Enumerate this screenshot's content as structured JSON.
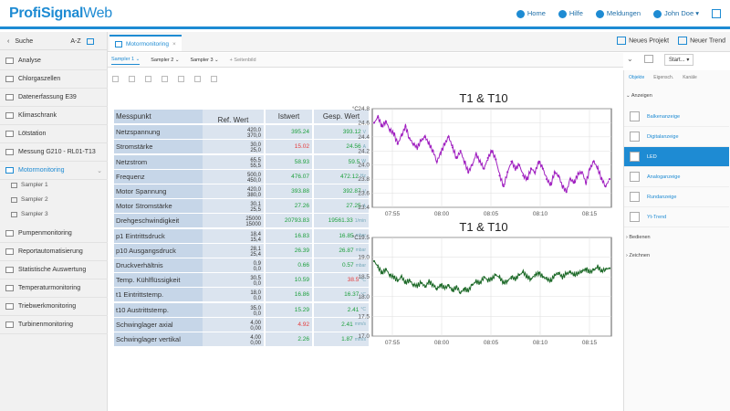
{
  "header": {
    "logo_a": "ProfiSignal",
    "logo_b": "Web",
    "nav": [
      "Home",
      "Hilfe",
      "Meldungen",
      "John Doe"
    ]
  },
  "sidebar": {
    "search": "Suche",
    "sort": "A-Z",
    "items": [
      "Analyse",
      "Chlorgaszellen",
      "Datenerfassung E39",
      "Klimaschrank",
      "Lötstation",
      "Messung G210 - RL01-T13",
      "Motormonitoring",
      "Pumpenmonitoring",
      "Reportautomatisierung",
      "Statistische Auswertung",
      "Temperaturmonitoring",
      "Triebwerkmonitoring",
      "Turbinenmonitoring"
    ],
    "subitems": [
      "Sampler 1",
      "Sampler 2",
      "Sampler 3"
    ]
  },
  "tab": {
    "label": "Motormonitoring",
    "close": "×"
  },
  "toolbar": {
    "new_project": "Neues Projekt",
    "new_trend": "Neuer Trend",
    "start": "Start..."
  },
  "samplers": [
    "Sampler 1",
    "Sampler 2",
    "Sampler 3",
    "+ Seitenbild"
  ],
  "rpanel": {
    "tabs": [
      "Objekte",
      "Eigensch.",
      "Kanäle"
    ],
    "section1": "Anzeigen",
    "items": [
      "Balkenanzeige",
      "Digitalanzeige",
      "LED",
      "Analoganzeige",
      "Rundanzeige",
      "Yt-Trend"
    ],
    "section2": "Bedienen",
    "section3": "Zeichnen"
  },
  "table": {
    "headers": [
      "Messpunkt",
      "Ref. Wert",
      "Istwert",
      "Gesp. Wert"
    ],
    "rows": [
      {
        "name": "Netzspannung",
        "ref": [
          "420,0",
          "370,0"
        ],
        "ist": "395.24",
        "ic": "green",
        "gesp": "393.12",
        "u": "V",
        "gc": "green"
      },
      {
        "name": "Stromstärke",
        "ref": [
          "30,0",
          "25,0"
        ],
        "ist": "15.02",
        "ic": "red",
        "gesp": "24.56",
        "u": "A",
        "gc": "green"
      },
      {
        "name": "Netzstrom",
        "ref": [
          "65,5",
          "55,5"
        ],
        "ist": "58.93",
        "ic": "green",
        "gesp": "59.5",
        "u": "W",
        "gc": "green"
      },
      {
        "name": "Frequenz",
        "ref": [
          "500,0",
          "450,0"
        ],
        "ist": "476.07",
        "ic": "green",
        "gesp": "472.12",
        "u": "Hz",
        "gc": "green"
      },
      {
        "name": "Motor Spannung",
        "ref": [
          "420,0",
          "380,0"
        ],
        "ist": "393.88",
        "ic": "green",
        "gesp": "392.87",
        "u": "V",
        "gc": "green"
      },
      {
        "name": "Motor Stromstärke",
        "ref": [
          "30,1",
          "25,5"
        ],
        "ist": "27.26",
        "ic": "green",
        "gesp": "27.25",
        "u": "A",
        "gc": "green"
      },
      {
        "name": "Drehgeschwindigkeit",
        "ref": [
          "25000",
          "15000"
        ],
        "ist": "20793.83",
        "ic": "green",
        "gesp": "19561.33",
        "u": "1/min",
        "gc": "green"
      },
      {
        "name": "p1 Eintrittsdruck",
        "ref": [
          "18,4",
          "15,4"
        ],
        "ist": "16.83",
        "ic": "green",
        "gesp": "16.85",
        "u": "mbar",
        "gc": "green"
      },
      {
        "name": "p10 Ausgangsdruck",
        "ref": [
          "28,1",
          "25,4"
        ],
        "ist": "26.39",
        "ic": "green",
        "gesp": "26.87",
        "u": "mbar",
        "gc": "green"
      },
      {
        "name": "Druckverhältnis",
        "ref": [
          "0,9",
          "0,0"
        ],
        "ist": "0.66",
        "ic": "green",
        "gesp": "0.57",
        "u": "mbar",
        "gc": "green"
      },
      {
        "name": "Temp. Kühlflüssigkeit",
        "ref": [
          "30,5",
          "0,0"
        ],
        "ist": "10.59",
        "ic": "green",
        "gesp": "38.5",
        "u": "°C",
        "gc": "red"
      },
      {
        "name": "t1 Eintrittstemp.",
        "ref": [
          "18,0",
          "0,0"
        ],
        "ist": "16.86",
        "ic": "green",
        "gesp": "16.37",
        "u": "°C",
        "gc": "green"
      },
      {
        "name": "t10 Austrittstemp.",
        "ref": [
          "35,0",
          "0,0"
        ],
        "ist": "15.29",
        "ic": "green",
        "gesp": "2.41",
        "u": "°C",
        "gc": "green"
      },
      {
        "name": "Schwinglager axial",
        "ref": [
          "4,00",
          "0,00"
        ],
        "ist": "4.92",
        "ic": "red",
        "gesp": "2.41",
        "u": "mm/s",
        "gc": "green"
      },
      {
        "name": "Schwinglager vertikal",
        "ref": [
          "4,00",
          "0,00"
        ],
        "ist": "2.26",
        "ic": "green",
        "gesp": "1.87",
        "u": "mm/s",
        "gc": "green"
      }
    ]
  },
  "chart_data": [
    {
      "type": "line",
      "title": "T1 & T10",
      "ylabel": "°C",
      "ylim": [
        23.4,
        24.8
      ],
      "yticks": [
        "24.8",
        "24.6",
        "24.4",
        "24.2",
        "24.0",
        "23.8",
        "23.6",
        "23.4"
      ],
      "xticks": [
        "07:55",
        "08:00",
        "08:05",
        "08:10",
        "08:15"
      ],
      "color": "#a020c0",
      "series": [
        {
          "name": "T1",
          "values": [
            24.6,
            24.68,
            24.55,
            24.62,
            24.5,
            24.45,
            24.3,
            24.42,
            24.55,
            24.38,
            24.3,
            24.25,
            24.35,
            24.4,
            24.3,
            24.2,
            24.05,
            24.18,
            24.3,
            24.4,
            24.25,
            24.1,
            24.2,
            24.05,
            23.9,
            24.0,
            24.15,
            24.05,
            23.95,
            24.1,
            24.2,
            24.08,
            23.85,
            23.7,
            23.9,
            24.05,
            23.95,
            24.0,
            23.85,
            23.8,
            23.95,
            23.9,
            24.05,
            23.95,
            23.8,
            23.72,
            23.9,
            23.85,
            23.7,
            23.62,
            23.8,
            23.75,
            23.88,
            23.9,
            23.75,
            23.95,
            24.05,
            23.95,
            23.8,
            23.7,
            23.8
          ]
        }
      ]
    },
    {
      "type": "line",
      "title": "T1 & T10",
      "ylabel": "°C",
      "ylim": [
        17.0,
        19.5
      ],
      "yticks": [
        "19.5",
        "19.0",
        "18.5",
        "18.0",
        "17.5",
        "17.0"
      ],
      "xticks": [
        "07:55",
        "08:00",
        "08:05",
        "08:10",
        "08:15"
      ],
      "color": "#1f6b2a",
      "series": [
        {
          "name": "T10",
          "values": [
            18.9,
            18.75,
            18.6,
            18.7,
            18.55,
            18.5,
            18.4,
            18.5,
            18.35,
            18.42,
            18.3,
            18.28,
            18.35,
            18.25,
            18.38,
            18.3,
            18.2,
            18.3,
            18.22,
            18.28,
            18.15,
            18.25,
            18.1,
            18.2,
            18.15,
            18.3,
            18.38,
            18.35,
            18.5,
            18.42,
            18.45,
            18.55,
            18.48,
            18.35,
            18.4,
            18.5,
            18.45,
            18.55,
            18.62,
            18.5,
            18.45,
            18.55,
            18.6,
            18.5,
            18.45,
            18.4,
            18.55,
            18.6,
            18.5,
            18.58,
            18.62,
            18.55,
            18.6,
            18.65,
            18.7,
            18.62,
            18.68,
            18.75,
            18.65,
            18.7,
            18.72
          ]
        }
      ]
    }
  ]
}
